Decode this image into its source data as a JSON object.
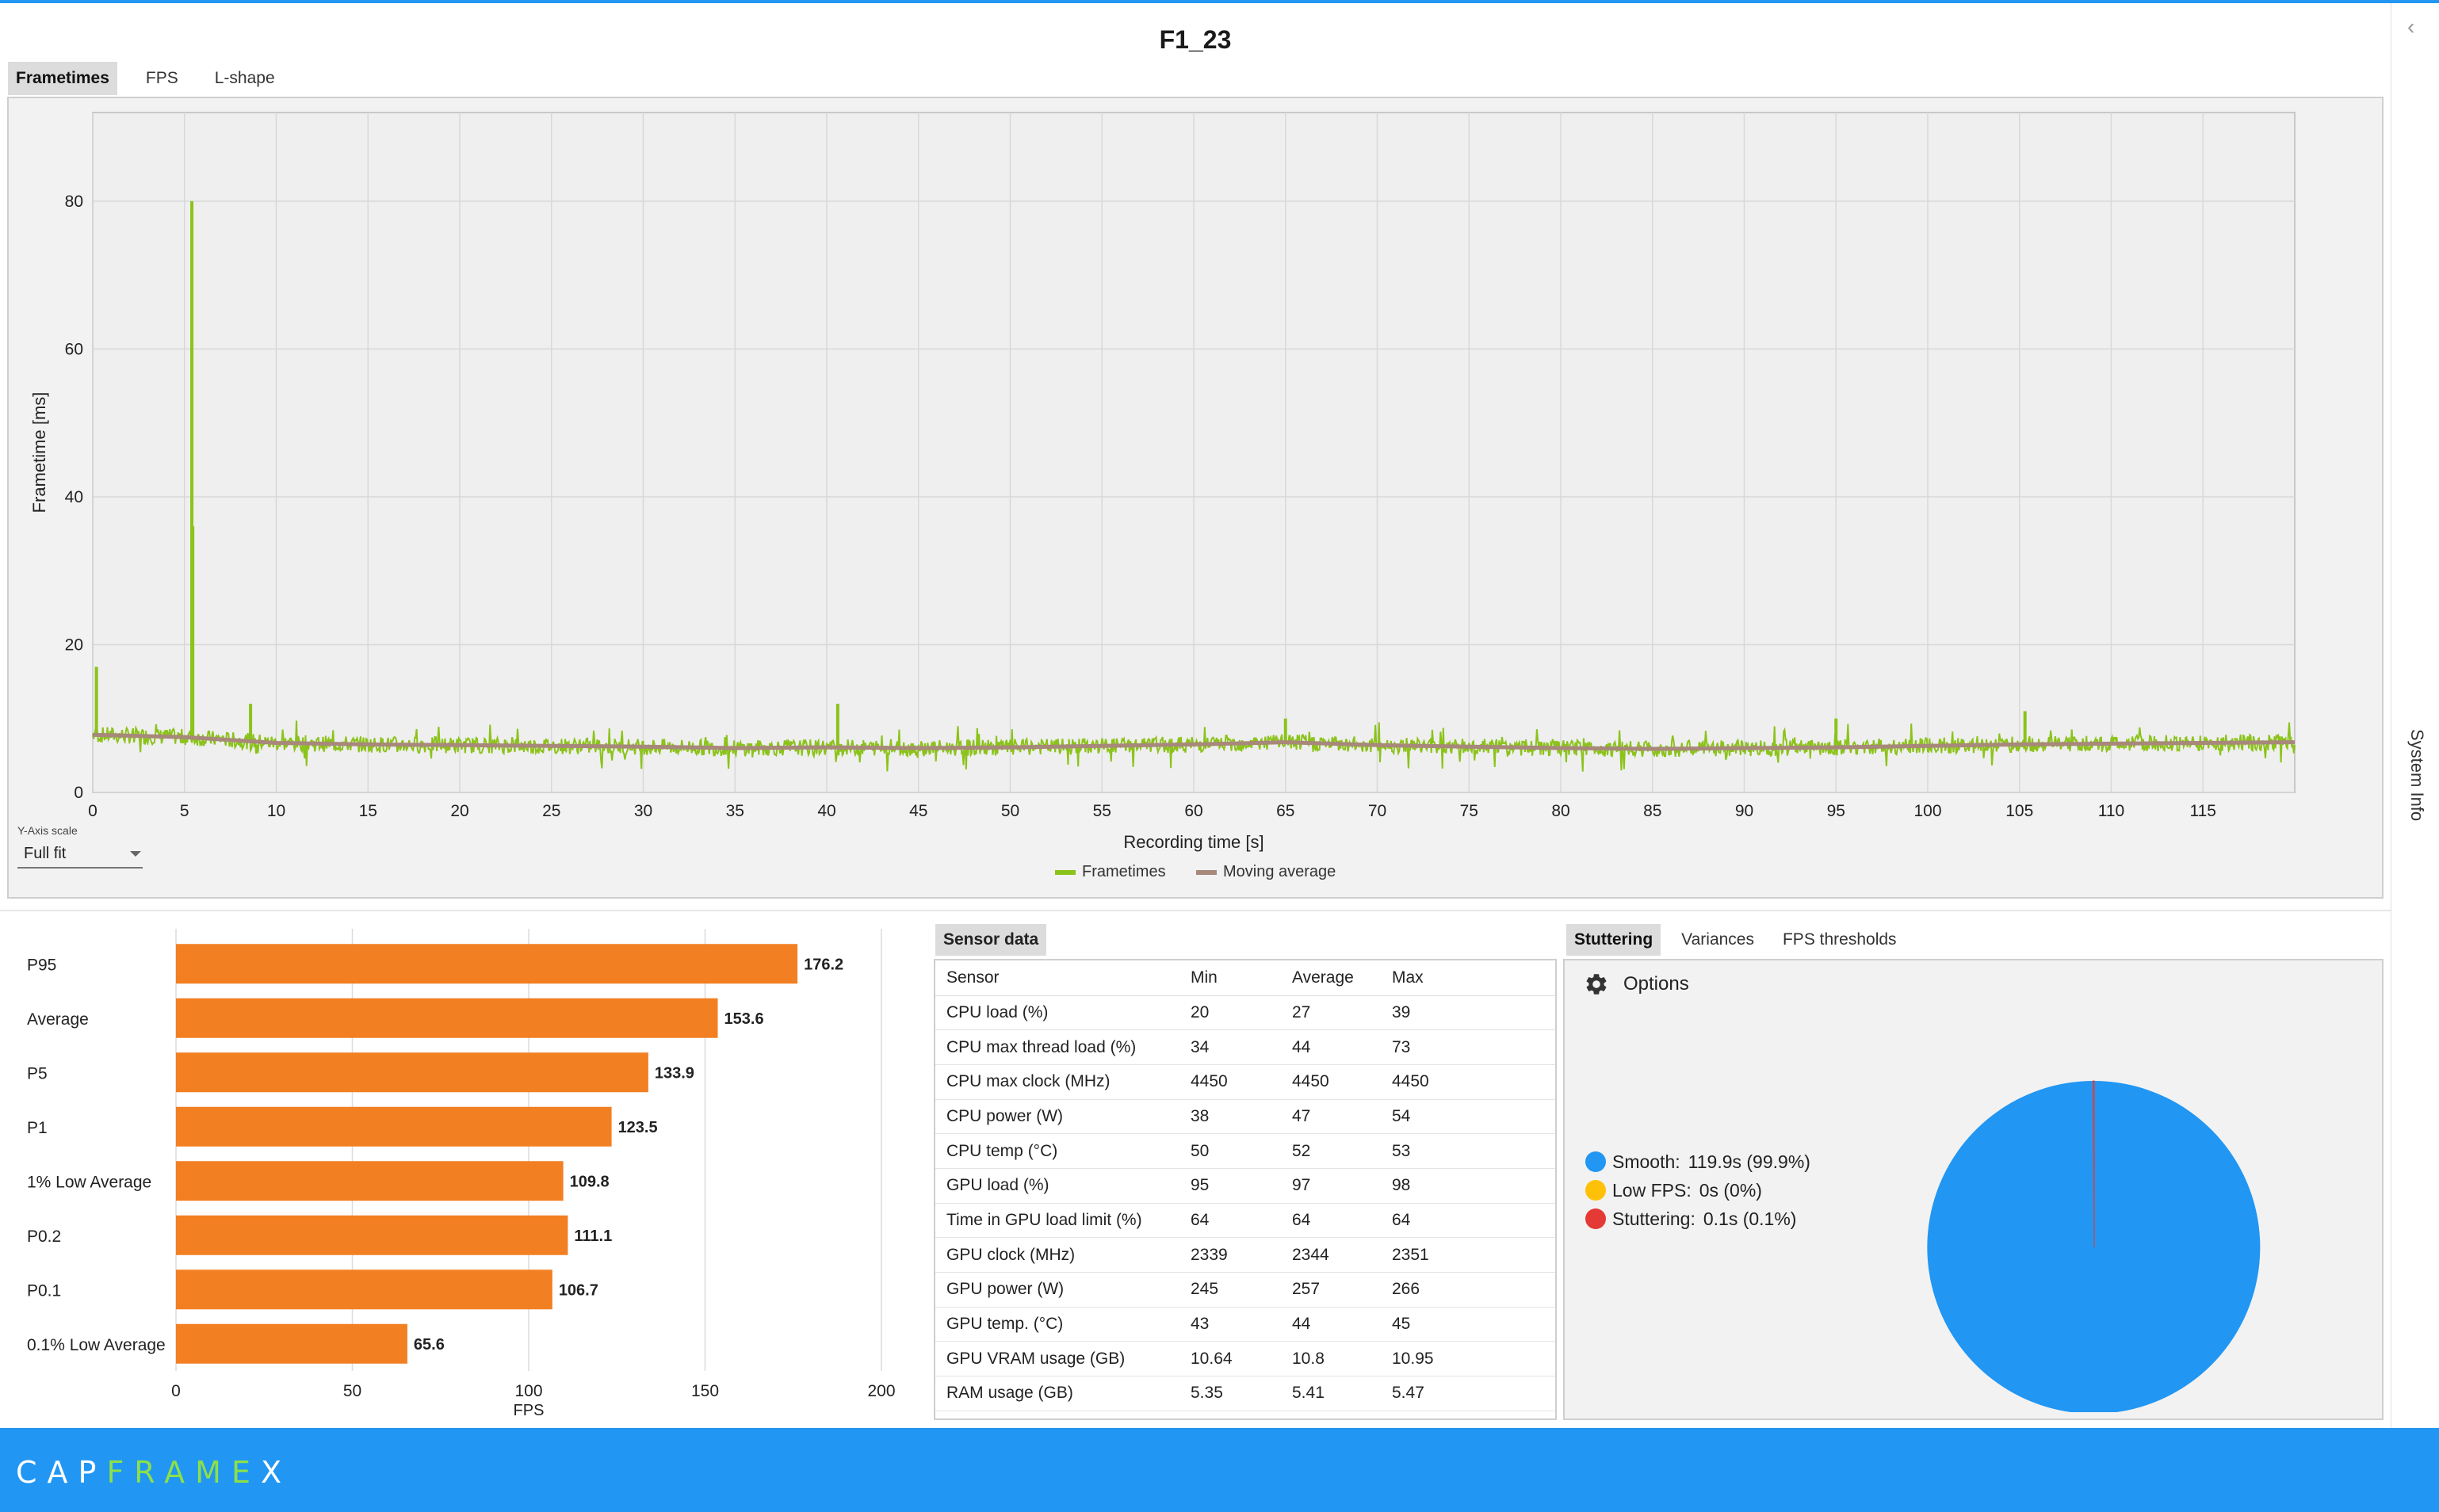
{
  "title": "F1_23",
  "tabs": [
    {
      "label": "Frametimes",
      "active": true
    },
    {
      "label": "FPS",
      "active": false
    },
    {
      "label": "L-shape",
      "active": false
    }
  ],
  "side_panel": {
    "label": "System Info",
    "chevron": "‹"
  },
  "y_axis_scale": {
    "label": "Y-Axis scale",
    "value": "Full fit"
  },
  "frametime_chart": {
    "type": "line",
    "ylabel": "Frametime [ms]",
    "xlabel": "Recording time [s]",
    "xlim": [
      0,
      120
    ],
    "ylim": [
      0,
      92
    ],
    "x_ticks": [
      0,
      5,
      10,
      15,
      20,
      25,
      30,
      35,
      40,
      45,
      50,
      55,
      60,
      65,
      70,
      75,
      80,
      85,
      90,
      95,
      100,
      105,
      110,
      115
    ],
    "y_ticks": [
      0,
      20,
      40,
      60,
      80
    ],
    "grid": true,
    "legend_position": "bottom-center",
    "series": [
      {
        "name": "Frametimes",
        "color": "#8bc31a"
      },
      {
        "name": "Moving average",
        "color": "#a7887a"
      }
    ],
    "moving_average": {
      "x": [
        0,
        5,
        10,
        15,
        20,
        25,
        30,
        35,
        40,
        45,
        50,
        55,
        60,
        65,
        70,
        75,
        80,
        85,
        90,
        95,
        100,
        105,
        110,
        115,
        120
      ],
      "y": [
        7.8,
        7.5,
        6.7,
        6.5,
        6.4,
        6.3,
        6.2,
        6.0,
        6.1,
        6.0,
        6.1,
        6.3,
        6.5,
        6.8,
        6.4,
        6.2,
        6.0,
        5.9,
        6.0,
        6.1,
        6.3,
        6.5,
        6.6,
        6.7,
        6.8
      ]
    },
    "spikes": [
      {
        "x": 0.2,
        "y": 17
      },
      {
        "x": 5.4,
        "y": 80
      },
      {
        "x": 5.45,
        "y": 36
      },
      {
        "x": 8.6,
        "y": 12
      },
      {
        "x": 40.6,
        "y": 12
      },
      {
        "x": 65.0,
        "y": 10
      },
      {
        "x": 95.0,
        "y": 10
      },
      {
        "x": 105.3,
        "y": 11
      }
    ]
  },
  "chart_data": {
    "type": "bar",
    "orientation": "horizontal",
    "categories": [
      "P95",
      "Average",
      "P5",
      "P1",
      "1% Low Average",
      "P0.2",
      "P0.1",
      "0.1% Low Average"
    ],
    "values": [
      176.2,
      153.6,
      133.9,
      123.5,
      109.8,
      111.1,
      106.7,
      65.6
    ],
    "xlabel": "FPS",
    "xlim": [
      0,
      200
    ],
    "x_ticks": [
      0,
      50,
      100,
      150,
      200
    ],
    "color": "#f27f22"
  },
  "sensor_tab": "Sensor data",
  "sensor_table": {
    "headers": [
      "Sensor",
      "Min",
      "Average",
      "Max"
    ],
    "rows": [
      [
        "CPU load (%)",
        "20",
        "27",
        "39"
      ],
      [
        "CPU max thread load (%)",
        "34",
        "44",
        "73"
      ],
      [
        "CPU max clock (MHz)",
        "4450",
        "4450",
        "4450"
      ],
      [
        "CPU power (W)",
        "38",
        "47",
        "54"
      ],
      [
        "CPU temp (°C)",
        "50",
        "52",
        "53"
      ],
      [
        "GPU load (%)",
        "95",
        "97",
        "98"
      ],
      [
        "Time in GPU load limit (%)",
        "64",
        "64",
        "64"
      ],
      [
        "GPU clock (MHz)",
        "2339",
        "2344",
        "2351"
      ],
      [
        "GPU power (W)",
        "245",
        "257",
        "266"
      ],
      [
        "GPU temp. (°C)",
        "43",
        "44",
        "45"
      ],
      [
        "GPU VRAM usage (GB)",
        "10.64",
        "10.8",
        "10.95"
      ],
      [
        "RAM usage (GB)",
        "5.35",
        "5.41",
        "5.47"
      ]
    ]
  },
  "stutter_tabs": [
    {
      "label": "Stuttering",
      "active": true
    },
    {
      "label": "Variances",
      "active": false
    },
    {
      "label": "FPS thresholds",
      "active": false
    }
  ],
  "options_label": "Options",
  "stuttering": {
    "type": "pie",
    "items": [
      {
        "label": "Smooth:",
        "value": "119.9s (99.9%)",
        "percent": 99.9,
        "color": "#2196f3"
      },
      {
        "label": "Low FPS:",
        "value": "0s (0%)",
        "percent": 0,
        "color": "#ffc107"
      },
      {
        "label": "Stuttering:",
        "value": "0.1s (0.1%)",
        "percent": 0.1,
        "color": "#e53935"
      }
    ]
  },
  "footer": {
    "logo_white_1": "CAP",
    "logo_green": "FRAME",
    "logo_white_2": "X"
  }
}
